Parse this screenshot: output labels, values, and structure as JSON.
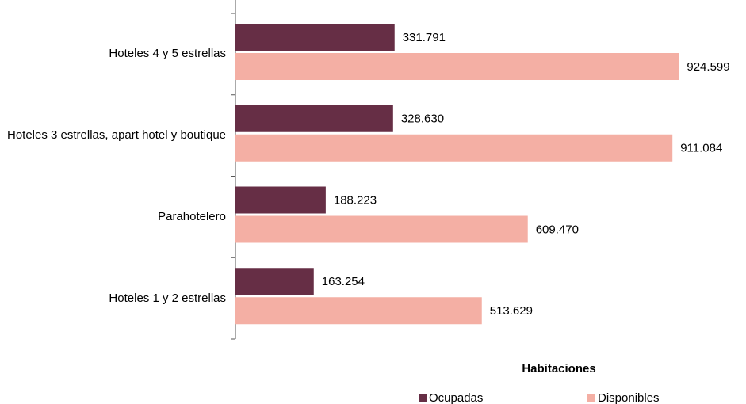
{
  "chart_data": {
    "type": "hbar",
    "categories": [
      "Hoteles 4 y 5 estrellas",
      "Hoteles 3 estrellas, apart hotel y boutique",
      "Parahotelero",
      "Hoteles 1 y 2 estrellas"
    ],
    "legend_title": "Habitaciones",
    "series": [
      {
        "name": "Ocupadas",
        "color": "#662e45",
        "values": [
          331791,
          328630,
          188223,
          163254
        ],
        "value_labels": [
          "331.791",
          "328.630",
          "188.223",
          "163.254"
        ]
      },
      {
        "name": "Disponibles",
        "color": "#f4afa4",
        "values": [
          924599,
          911084,
          609470,
          513629
        ],
        "value_labels": [
          "924.599",
          "911.084",
          "609.470",
          "513.629"
        ]
      }
    ],
    "xlim": [
      0,
      1000000
    ]
  }
}
